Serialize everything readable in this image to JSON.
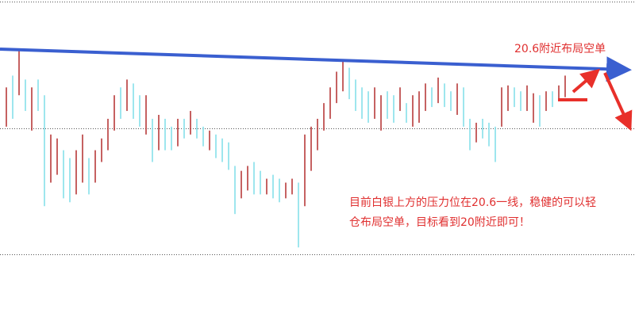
{
  "chart_data": {
    "type": "range-bar",
    "annotation": "20.6附近布局空单",
    "note_lines": [
      "目前白银上方的压力位在20.6一线，稳健的可以轻",
      "仓布局空单，目标看到20附近即可！"
    ],
    "ylim": [
      18.0,
      21.3
    ],
    "gridlines": [
      21.28,
      19.99,
      18.71
    ],
    "color_up": "#b83a3a",
    "color_down": "#86e0ea",
    "high": [
      20.41,
      20.53,
      20.8,
      20.49,
      20.41,
      20.49,
      20.33,
      19.93,
      19.89,
      19.77,
      19.69,
      19.77,
      19.93,
      19.69,
      19.77,
      19.89,
      20.09,
      20.33,
      20.41,
      20.49,
      20.45,
      20.33,
      20.33,
      20.09,
      20.13,
      20.09,
      20.01,
      20.09,
      20.09,
      20.17,
      20.09,
      20.01,
      19.97,
      19.93,
      19.89,
      19.85,
      19.61,
      19.56,
      19.61,
      19.65,
      19.56,
      19.48,
      19.52,
      19.48,
      19.44,
      19.48,
      19.44,
      19.93,
      20.01,
      20.09,
      20.25,
      20.41,
      20.57,
      20.69,
      20.61,
      20.49,
      20.41,
      20.37,
      20.41,
      20.33,
      20.37,
      20.33,
      20.41,
      20.25,
      20.33,
      20.37,
      20.45,
      20.41,
      20.51,
      20.45,
      20.37,
      20.45,
      20.41,
      20.09,
      20.05,
      20.09,
      20.05,
      20.01,
      20.41,
      20.43,
      20.41,
      20.37,
      20.43,
      20.35,
      20.33,
      20.37,
      20.37,
      20.43,
      20.53
    ],
    "low": [
      20.01,
      20.09,
      20.33,
      20.17,
      19.97,
      20.17,
      19.2,
      19.44,
      19.52,
      19.28,
      19.24,
      19.32,
      19.44,
      19.32,
      19.44,
      19.65,
      19.77,
      19.97,
      20.09,
      20.17,
      20.09,
      20.01,
      19.93,
      19.65,
      19.77,
      19.77,
      19.77,
      19.81,
      19.89,
      19.93,
      19.89,
      19.81,
      19.77,
      19.69,
      19.65,
      19.57,
      19.12,
      19.28,
      19.36,
      19.32,
      19.32,
      19.32,
      19.28,
      19.24,
      19.28,
      19.32,
      18.78,
      19.2,
      19.56,
      19.77,
      19.97,
      20.09,
      20.25,
      20.37,
      20.29,
      20.17,
      20.09,
      20.05,
      20.09,
      19.97,
      20.09,
      20.05,
      20.17,
      20.05,
      20.01,
      20.05,
      20.17,
      20.21,
      20.25,
      20.21,
      20.17,
      20.13,
      20.01,
      19.77,
      19.85,
      19.89,
      19.81,
      19.65,
      20.01,
      20.17,
      20.21,
      20.17,
      20.17,
      20.05,
      20.01,
      20.17,
      20.21,
      20.27,
      20.31
    ],
    "rising": [
      true,
      false,
      true,
      false,
      true,
      false,
      false,
      true,
      true,
      false,
      false,
      true,
      true,
      false,
      true,
      true,
      true,
      true,
      false,
      true,
      false,
      false,
      true,
      false,
      true,
      false,
      false,
      true,
      false,
      true,
      false,
      false,
      true,
      false,
      false,
      false,
      false,
      true,
      true,
      false,
      false,
      true,
      false,
      false,
      true,
      true,
      false,
      true,
      true,
      true,
      true,
      true,
      true,
      true,
      false,
      false,
      false,
      false,
      true,
      true,
      false,
      false,
      true,
      false,
      true,
      true,
      true,
      false,
      true,
      false,
      false,
      true,
      false,
      false,
      true,
      false,
      false,
      false,
      true,
      true,
      false,
      false,
      true,
      true,
      false,
      true,
      false,
      true,
      true
    ]
  }
}
